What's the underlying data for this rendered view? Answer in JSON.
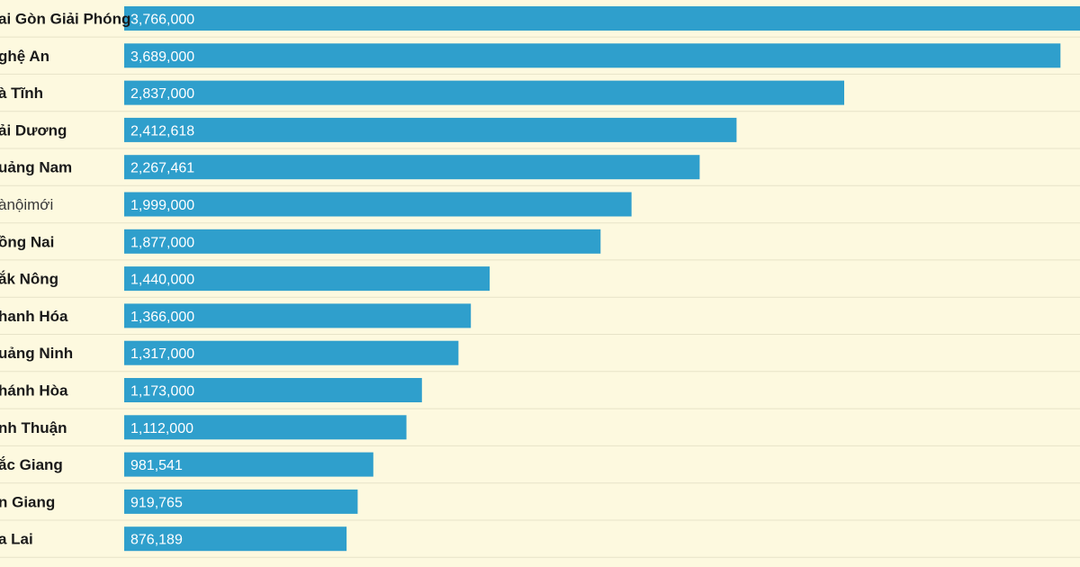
{
  "colors": {
    "background": "#fdf9df",
    "bar": "#2f9fcc",
    "row_divider": "#e7e3c8",
    "label_text": "#1a1a1a",
    "value_text": "#ffffff"
  },
  "chart_data": {
    "type": "bar",
    "orientation": "horizontal",
    "title": "",
    "xlabel": "",
    "ylabel": "",
    "xlim": [
      0,
      3766000
    ],
    "grid": false,
    "legend": "none",
    "categories": [
      "ai Gòn Giải Phóng",
      "ghệ An",
      "à Tĩnh",
      "ải Dương",
      "uảng Nam",
      "ànộimới",
      "ồng Nai",
      "ắk Nông",
      "hanh Hóa",
      "uảng Ninh",
      "hánh Hòa",
      "nh Thuận",
      "ắc Giang",
      "n Giang",
      "a Lai"
    ],
    "values": [
      3766000,
      3689000,
      2837000,
      2412618,
      2267461,
      1999000,
      1877000,
      1440000,
      1366000,
      1317000,
      1173000,
      1112000,
      981541,
      919765,
      876189
    ],
    "value_labels": [
      "3,766,000",
      "3,689,000",
      "2,837,000",
      "2,412,618",
      "2,267,461",
      "1,999,000",
      "1,877,000",
      "1,440,000",
      "1,366,000",
      "1,317,000",
      "1,173,000",
      "1,112,000",
      "981,541",
      "919,765",
      "876,189"
    ],
    "category_styles": [
      "bold",
      "bold",
      "bold",
      "bold",
      "bold",
      "light",
      "bold",
      "bold",
      "bold",
      "bold",
      "bold",
      "bold",
      "bold",
      "bold",
      "bold"
    ]
  }
}
